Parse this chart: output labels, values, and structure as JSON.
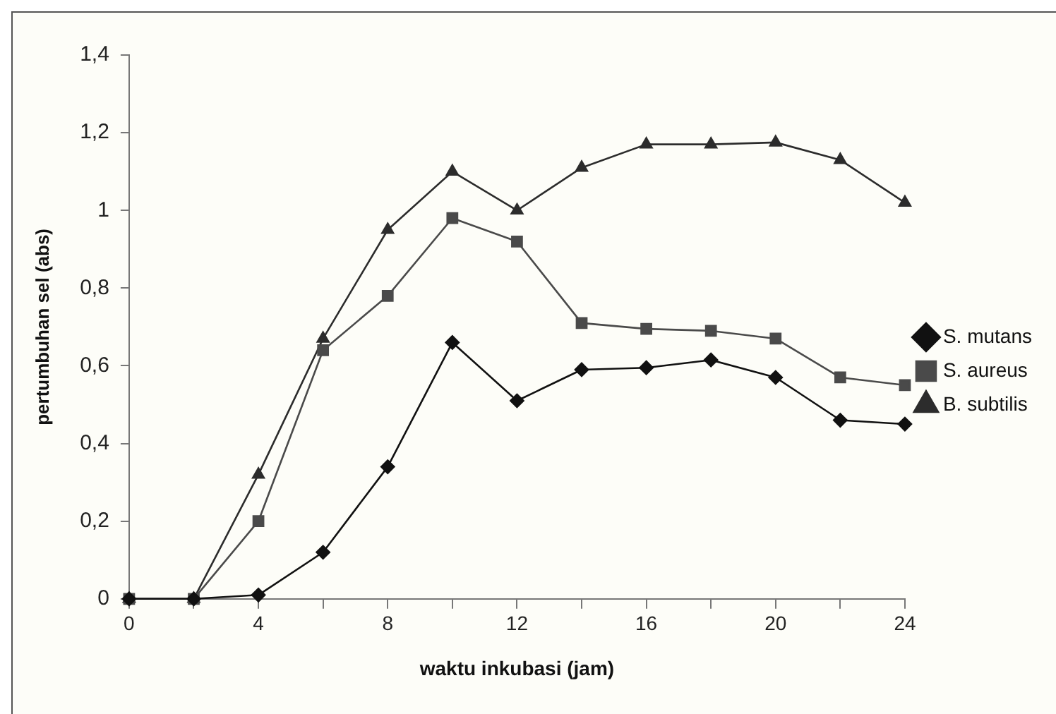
{
  "chart_data": {
    "type": "line",
    "xlabel": "waktu inkubasi (jam)",
    "ylabel": "pertumbuhan sel (abs)",
    "x": [
      0,
      2,
      4,
      6,
      8,
      10,
      12,
      14,
      16,
      18,
      20,
      22,
      24
    ],
    "xlim": [
      0,
      24
    ],
    "xticks": [
      0,
      {
        "value": 2,
        "label": null
      },
      4,
      {
        "value": 6,
        "label": null
      },
      8,
      {
        "value": 10,
        "label": null
      },
      12,
      {
        "value": 14,
        "label": null
      },
      16,
      {
        "value": 18,
        "label": null
      },
      20,
      {
        "value": 22,
        "label": null
      },
      24
    ],
    "ylim": [
      0,
      1.4
    ],
    "yticks": [
      0,
      {
        "value": 0.2,
        "label": "0,2"
      },
      {
        "value": 0.4,
        "label": "0,4"
      },
      {
        "value": 0.6,
        "label": "0,6"
      },
      {
        "value": 0.8,
        "label": "0,8"
      },
      1,
      {
        "value": 1.2,
        "label": "1,2"
      },
      {
        "value": 1.4,
        "label": "1,4"
      }
    ],
    "grid": false,
    "legend": "right",
    "line_style": "solid",
    "series": [
      {
        "name": "S. mutans",
        "color": "#111111",
        "marker": "diamond",
        "values": [
          0,
          0,
          0.01,
          0.12,
          0.34,
          0.66,
          0.51,
          0.59,
          0.595,
          0.615,
          0.57,
          0.46,
          0.45
        ]
      },
      {
        "name": "S. aureus",
        "color": "#4a4a4a",
        "marker": "square",
        "values": [
          0,
          0,
          0.2,
          0.64,
          0.78,
          0.98,
          0.92,
          0.71,
          0.695,
          0.69,
          0.67,
          0.57,
          0.55
        ]
      },
      {
        "name": "B. subtilis",
        "color": "#2c2c2c",
        "marker": "triangle",
        "values": [
          0,
          0,
          0.32,
          0.67,
          0.95,
          1.1,
          1.0,
          1.11,
          1.17,
          1.17,
          1.175,
          1.13,
          1.02
        ]
      }
    ]
  }
}
